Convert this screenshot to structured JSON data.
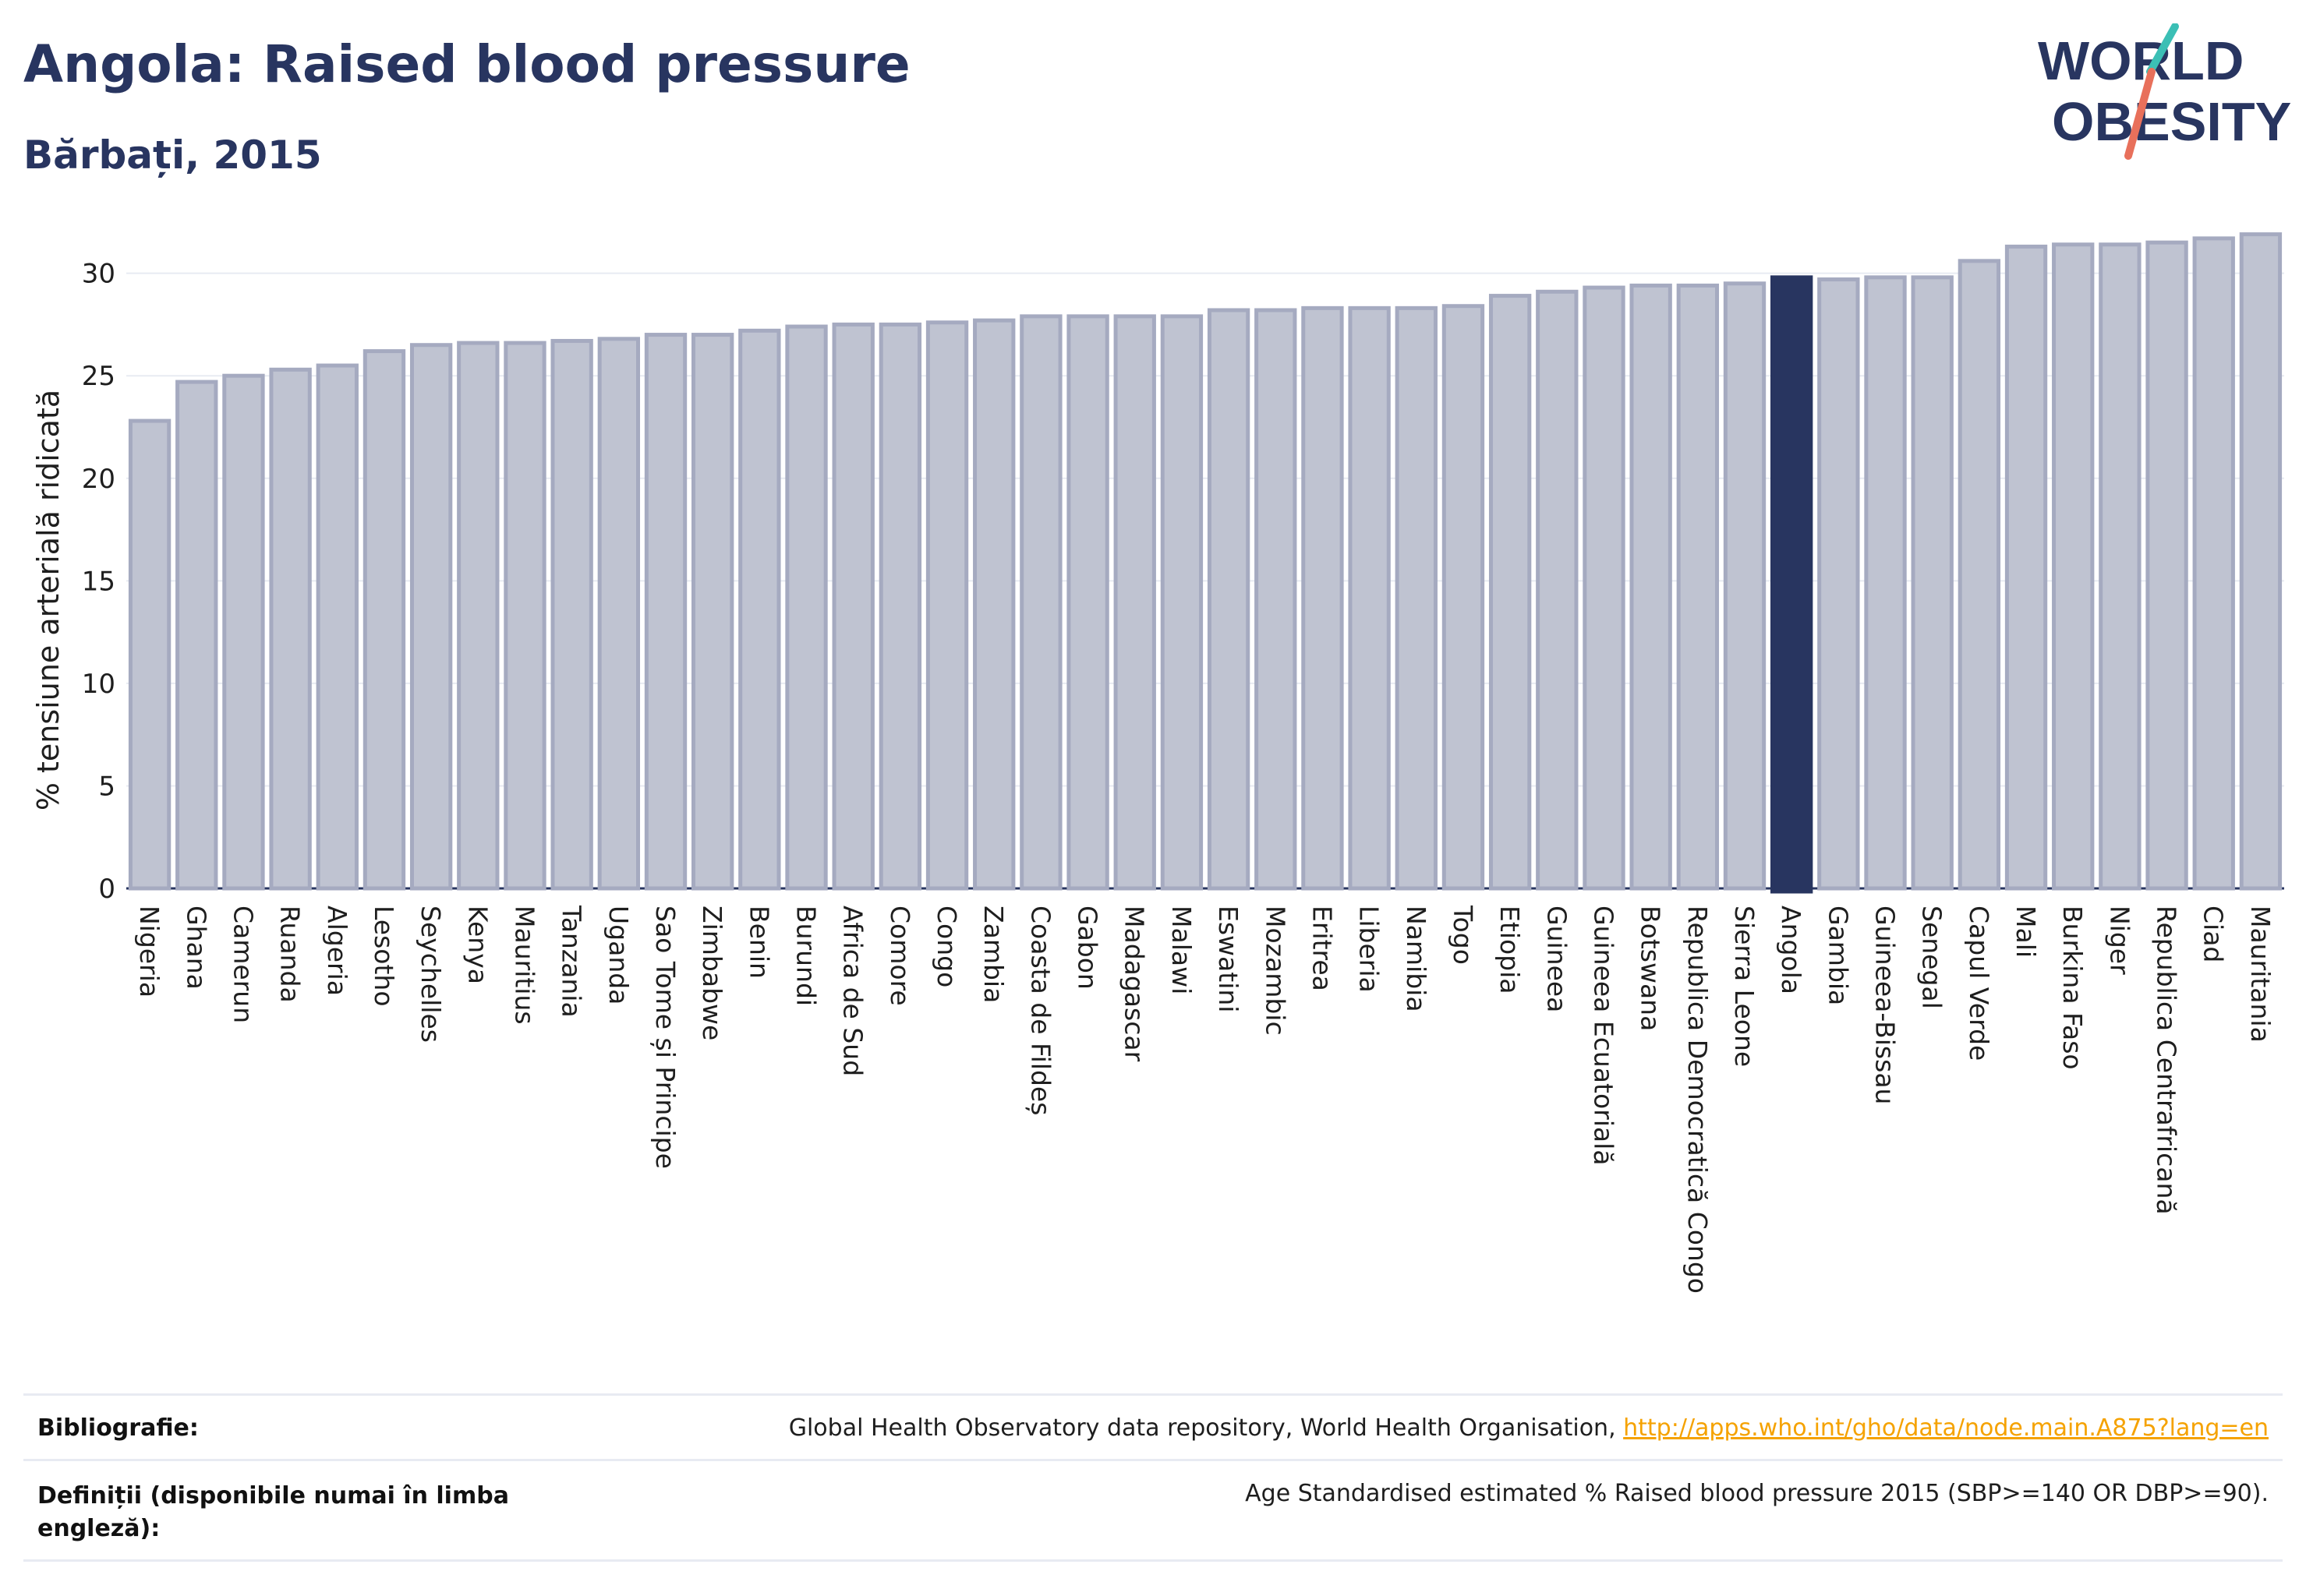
{
  "header": {
    "title": "Angola: Raised blood pressure",
    "subtitle": "Bărbați, 2015"
  },
  "logo": {
    "line1": "WORLD",
    "line2": "OBESITY"
  },
  "colors": {
    "highlight": "#283560",
    "bar_fill": "#bfc3d1",
    "bar_stroke": "#a5aac0",
    "grid": "#e8ebf2",
    "accent_orange": "#f5a200",
    "logo_teal": "#3bbfb5",
    "logo_coral": "#e8705b"
  },
  "chart_data": {
    "type": "bar",
    "ylabel": "% tensiune arterială ridicată",
    "xlabel": "",
    "ylim": [
      0,
      32
    ],
    "yticks": [
      0,
      5,
      10,
      15,
      20,
      25,
      30
    ],
    "grid": true,
    "highlight": "Angola",
    "categories": [
      "Nigeria",
      "Ghana",
      "Camerun",
      "Ruanda",
      "Algeria",
      "Lesotho",
      "Seychelles",
      "Kenya",
      "Mauritius",
      "Tanzania",
      "Uganda",
      "Sao Tome și Principe",
      "Zimbabwe",
      "Benin",
      "Burundi",
      "Africa de Sud",
      "Comore",
      "Congo",
      "Zambia",
      "Coasta de Fildeș",
      "Gabon",
      "Madagascar",
      "Malawi",
      "Eswatini",
      "Mozambic",
      "Eritrea",
      "Liberia",
      "Namibia",
      "Togo",
      "Etiopia",
      "Guineea",
      "Guineea Ecuatorială",
      "Botswana",
      "Republica Democratică Congo",
      "Sierra Leone",
      "Angola",
      "Gambia",
      "Guineea-Bissau",
      "Senegal",
      "Capul Verde",
      "Mali",
      "Burkina Faso",
      "Niger",
      "Republica Centrafricană",
      "Ciad",
      "Mauritania"
    ],
    "values": [
      22.8,
      24.7,
      25.0,
      25.3,
      25.5,
      26.2,
      26.5,
      26.6,
      26.6,
      26.7,
      26.8,
      27.0,
      27.0,
      27.2,
      27.4,
      27.5,
      27.5,
      27.6,
      27.7,
      27.9,
      27.9,
      27.9,
      27.9,
      28.2,
      28.2,
      28.3,
      28.3,
      28.3,
      28.4,
      28.9,
      29.1,
      29.3,
      29.4,
      29.4,
      29.5,
      29.8,
      29.7,
      29.8,
      29.8,
      30.6,
      31.3,
      31.4,
      31.4,
      31.5,
      31.7,
      31.9
    ]
  },
  "footer": {
    "bibliography_label": "Bibliografie:",
    "bibliography_text": "Global Health Observatory data repository, World Health Organisation, ",
    "bibliography_link": "http://apps.who.int/gho/data/node.main.A875?lang=en",
    "definitions_label_1": "Definiții (disponibile numai în limba",
    "definitions_label_2": "engleză):",
    "definitions_text": "Age Standardised estimated % Raised blood pressure 2015 (SBP>=140 OR DBP>=90)."
  }
}
